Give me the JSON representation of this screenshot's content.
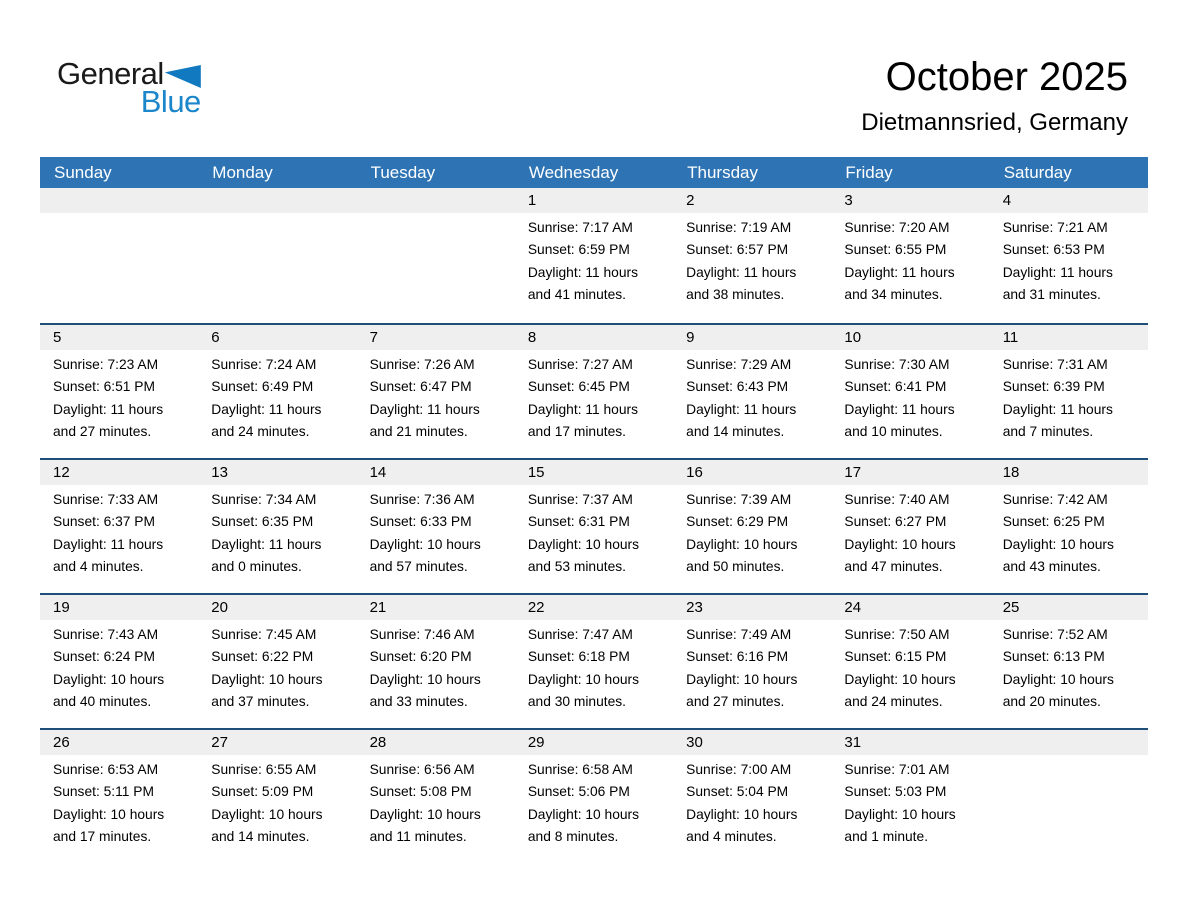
{
  "logo": {
    "general": "General",
    "blue": "Blue"
  },
  "header": {
    "title": "October 2025",
    "subtitle": "Dietmannsried, Germany"
  },
  "colors": {
    "header_blue": "#2E74B5",
    "week_separator": "#1F4E79",
    "day_strip_gray": "#EFEFEF",
    "logo_blue": "#1B86CA",
    "logo_triangle_blue": "#1079BF"
  },
  "calendar": {
    "day_headers": [
      "Sunday",
      "Monday",
      "Tuesday",
      "Wednesday",
      "Thursday",
      "Friday",
      "Saturday"
    ],
    "weeks": [
      {
        "days": [
          null,
          null,
          null,
          {
            "number": "1",
            "sunrise": "Sunrise: 7:17 AM",
            "sunset": "Sunset: 6:59 PM",
            "daylight1": "Daylight: 11 hours",
            "daylight2": "and 41 minutes."
          },
          {
            "number": "2",
            "sunrise": "Sunrise: 7:19 AM",
            "sunset": "Sunset: 6:57 PM",
            "daylight1": "Daylight: 11 hours",
            "daylight2": "and 38 minutes."
          },
          {
            "number": "3",
            "sunrise": "Sunrise: 7:20 AM",
            "sunset": "Sunset: 6:55 PM",
            "daylight1": "Daylight: 11 hours",
            "daylight2": "and 34 minutes."
          },
          {
            "number": "4",
            "sunrise": "Sunrise: 7:21 AM",
            "sunset": "Sunset: 6:53 PM",
            "daylight1": "Daylight: 11 hours",
            "daylight2": "and 31 minutes."
          }
        ]
      },
      {
        "days": [
          {
            "number": "5",
            "sunrise": "Sunrise: 7:23 AM",
            "sunset": "Sunset: 6:51 PM",
            "daylight1": "Daylight: 11 hours",
            "daylight2": "and 27 minutes."
          },
          {
            "number": "6",
            "sunrise": "Sunrise: 7:24 AM",
            "sunset": "Sunset: 6:49 PM",
            "daylight1": "Daylight: 11 hours",
            "daylight2": "and 24 minutes."
          },
          {
            "number": "7",
            "sunrise": "Sunrise: 7:26 AM",
            "sunset": "Sunset: 6:47 PM",
            "daylight1": "Daylight: 11 hours",
            "daylight2": "and 21 minutes."
          },
          {
            "number": "8",
            "sunrise": "Sunrise: 7:27 AM",
            "sunset": "Sunset: 6:45 PM",
            "daylight1": "Daylight: 11 hours",
            "daylight2": "and 17 minutes."
          },
          {
            "number": "9",
            "sunrise": "Sunrise: 7:29 AM",
            "sunset": "Sunset: 6:43 PM",
            "daylight1": "Daylight: 11 hours",
            "daylight2": "and 14 minutes."
          },
          {
            "number": "10",
            "sunrise": "Sunrise: 7:30 AM",
            "sunset": "Sunset: 6:41 PM",
            "daylight1": "Daylight: 11 hours",
            "daylight2": "and 10 minutes."
          },
          {
            "number": "11",
            "sunrise": "Sunrise: 7:31 AM",
            "sunset": "Sunset: 6:39 PM",
            "daylight1": "Daylight: 11 hours",
            "daylight2": "and 7 minutes."
          }
        ]
      },
      {
        "days": [
          {
            "number": "12",
            "sunrise": "Sunrise: 7:33 AM",
            "sunset": "Sunset: 6:37 PM",
            "daylight1": "Daylight: 11 hours",
            "daylight2": "and 4 minutes."
          },
          {
            "number": "13",
            "sunrise": "Sunrise: 7:34 AM",
            "sunset": "Sunset: 6:35 PM",
            "daylight1": "Daylight: 11 hours",
            "daylight2": "and 0 minutes."
          },
          {
            "number": "14",
            "sunrise": "Sunrise: 7:36 AM",
            "sunset": "Sunset: 6:33 PM",
            "daylight1": "Daylight: 10 hours",
            "daylight2": "and 57 minutes."
          },
          {
            "number": "15",
            "sunrise": "Sunrise: 7:37 AM",
            "sunset": "Sunset: 6:31 PM",
            "daylight1": "Daylight: 10 hours",
            "daylight2": "and 53 minutes."
          },
          {
            "number": "16",
            "sunrise": "Sunrise: 7:39 AM",
            "sunset": "Sunset: 6:29 PM",
            "daylight1": "Daylight: 10 hours",
            "daylight2": "and 50 minutes."
          },
          {
            "number": "17",
            "sunrise": "Sunrise: 7:40 AM",
            "sunset": "Sunset: 6:27 PM",
            "daylight1": "Daylight: 10 hours",
            "daylight2": "and 47 minutes."
          },
          {
            "number": "18",
            "sunrise": "Sunrise: 7:42 AM",
            "sunset": "Sunset: 6:25 PM",
            "daylight1": "Daylight: 10 hours",
            "daylight2": "and 43 minutes."
          }
        ]
      },
      {
        "days": [
          {
            "number": "19",
            "sunrise": "Sunrise: 7:43 AM",
            "sunset": "Sunset: 6:24 PM",
            "daylight1": "Daylight: 10 hours",
            "daylight2": "and 40 minutes."
          },
          {
            "number": "20",
            "sunrise": "Sunrise: 7:45 AM",
            "sunset": "Sunset: 6:22 PM",
            "daylight1": "Daylight: 10 hours",
            "daylight2": "and 37 minutes."
          },
          {
            "number": "21",
            "sunrise": "Sunrise: 7:46 AM",
            "sunset": "Sunset: 6:20 PM",
            "daylight1": "Daylight: 10 hours",
            "daylight2": "and 33 minutes."
          },
          {
            "number": "22",
            "sunrise": "Sunrise: 7:47 AM",
            "sunset": "Sunset: 6:18 PM",
            "daylight1": "Daylight: 10 hours",
            "daylight2": "and 30 minutes."
          },
          {
            "number": "23",
            "sunrise": "Sunrise: 7:49 AM",
            "sunset": "Sunset: 6:16 PM",
            "daylight1": "Daylight: 10 hours",
            "daylight2": "and 27 minutes."
          },
          {
            "number": "24",
            "sunrise": "Sunrise: 7:50 AM",
            "sunset": "Sunset: 6:15 PM",
            "daylight1": "Daylight: 10 hours",
            "daylight2": "and 24 minutes."
          },
          {
            "number": "25",
            "sunrise": "Sunrise: 7:52 AM",
            "sunset": "Sunset: 6:13 PM",
            "daylight1": "Daylight: 10 hours",
            "daylight2": "and 20 minutes."
          }
        ]
      },
      {
        "days": [
          {
            "number": "26",
            "sunrise": "Sunrise: 6:53 AM",
            "sunset": "Sunset: 5:11 PM",
            "daylight1": "Daylight: 10 hours",
            "daylight2": "and 17 minutes."
          },
          {
            "number": "27",
            "sunrise": "Sunrise: 6:55 AM",
            "sunset": "Sunset: 5:09 PM",
            "daylight1": "Daylight: 10 hours",
            "daylight2": "and 14 minutes."
          },
          {
            "number": "28",
            "sunrise": "Sunrise: 6:56 AM",
            "sunset": "Sunset: 5:08 PM",
            "daylight1": "Daylight: 10 hours",
            "daylight2": "and 11 minutes."
          },
          {
            "number": "29",
            "sunrise": "Sunrise: 6:58 AM",
            "sunset": "Sunset: 5:06 PM",
            "daylight1": "Daylight: 10 hours",
            "daylight2": "and 8 minutes."
          },
          {
            "number": "30",
            "sunrise": "Sunrise: 7:00 AM",
            "sunset": "Sunset: 5:04 PM",
            "daylight1": "Daylight: 10 hours",
            "daylight2": "and 4 minutes."
          },
          {
            "number": "31",
            "sunrise": "Sunrise: 7:01 AM",
            "sunset": "Sunset: 5:03 PM",
            "daylight1": "Daylight: 10 hours",
            "daylight2": "and 1 minute."
          },
          null
        ]
      }
    ]
  }
}
